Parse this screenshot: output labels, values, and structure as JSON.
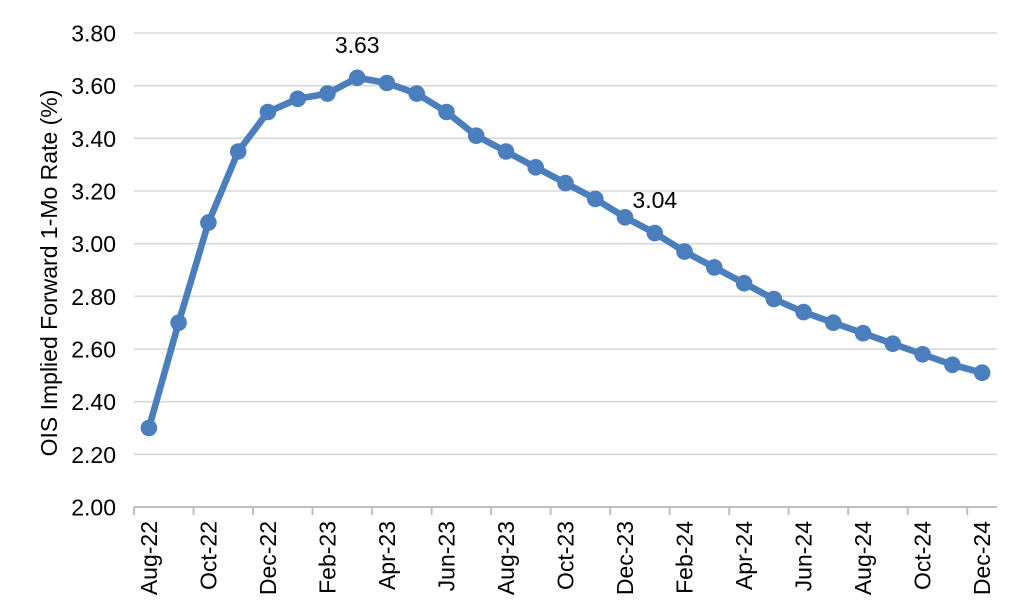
{
  "chart_data": {
    "type": "line",
    "title": "",
    "xlabel": "",
    "ylabel": "OIS Implied Forward 1-Mo Rate (%)",
    "legend": "none",
    "grid": true,
    "categories": [
      "Aug-22",
      "Sep-22",
      "Oct-22",
      "Nov-22",
      "Dec-22",
      "Jan-23",
      "Feb-23",
      "Mar-23",
      "Apr-23",
      "May-23",
      "Jun-23",
      "Jul-23",
      "Aug-23",
      "Sep-23",
      "Oct-23",
      "Nov-23",
      "Dec-23",
      "Jan-24",
      "Feb-24",
      "Mar-24",
      "Apr-24",
      "May-24",
      "Jun-24",
      "Jul-24",
      "Aug-24",
      "Sep-24",
      "Oct-24",
      "Nov-24",
      "Dec-24"
    ],
    "values": [
      2.3,
      2.7,
      3.08,
      3.35,
      3.5,
      3.55,
      3.57,
      3.63,
      3.61,
      3.57,
      3.5,
      3.41,
      3.35,
      3.29,
      3.23,
      3.17,
      3.1,
      3.04,
      2.97,
      2.91,
      2.85,
      2.79,
      2.74,
      2.7,
      2.66,
      2.62,
      2.58,
      2.54,
      2.51
    ],
    "ylim": [
      2.0,
      3.8
    ],
    "ytick_step": 0.2,
    "ytick_labels": [
      "2.00",
      "2.20",
      "2.40",
      "2.60",
      "2.80",
      "3.00",
      "3.20",
      "3.40",
      "3.60",
      "3.80"
    ],
    "xtick_labels": [
      "Aug-22",
      "Oct-22",
      "Dec-22",
      "Feb-23",
      "Apr-23",
      "Jun-23",
      "Aug-23",
      "Oct-23",
      "Dec-23",
      "Feb-24",
      "Apr-24",
      "Jun-24",
      "Aug-24",
      "Oct-24",
      "Dec-24"
    ],
    "annotations": [
      {
        "category": "Mar-23",
        "text": "3.63"
      },
      {
        "category": "Jan-24",
        "text": "3.04"
      }
    ],
    "colors": {
      "line": "#4a7ebc",
      "marker": "#4a7ebc",
      "gridline": "#d9d9d9",
      "axis": "#bfbfbf",
      "text": "#000000",
      "background": "#ffffff"
    }
  }
}
